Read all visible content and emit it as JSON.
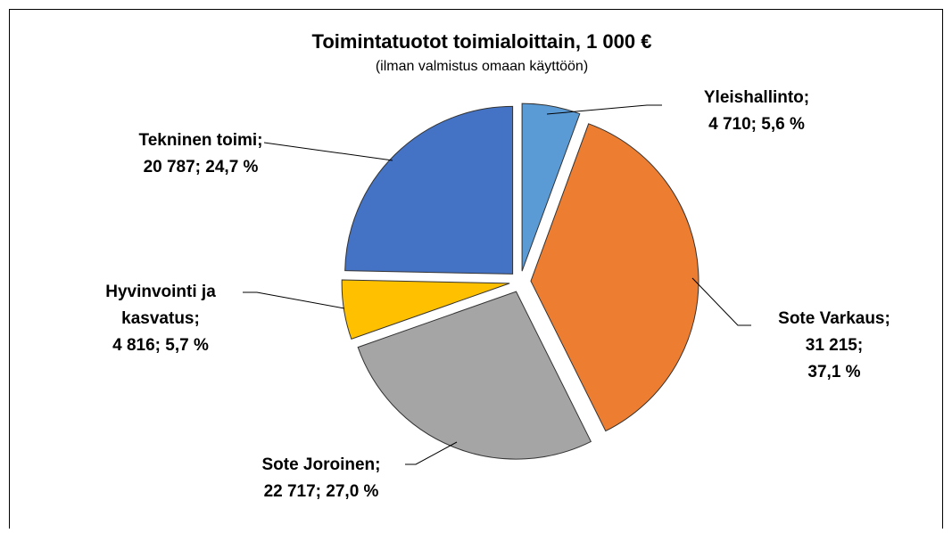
{
  "chart_data": {
    "type": "pie",
    "title": "Toimintatuotot toimialoittain, 1 000 €",
    "subtitle": "(ilman valmistus omaan käyttöön)",
    "categories": [
      "Yleishallinto;",
      "Sote Varkaus;",
      "Sote Joroinen;",
      "Hyvinvointi ja kasvatus;",
      "Tekninen toimi;"
    ],
    "values": [
      4710,
      31215,
      22717,
      4816,
      20787
    ],
    "value_labels": [
      "4 710; 5,6 %",
      "31 215; 37,1 %",
      "22 717; 27,0 %",
      "4 816; 5,7 %",
      "20 787; 24,7 %"
    ],
    "colors": [
      "#5b9bd5",
      "#ed7d31",
      "#a5a5a5",
      "#ffc000",
      "#4472c4"
    ]
  }
}
